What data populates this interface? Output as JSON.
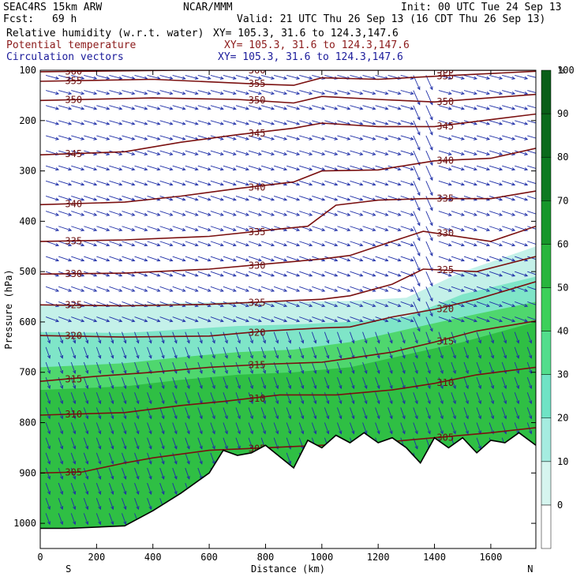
{
  "header": {
    "model": "SEAC4RS 15km ARW",
    "org": "NCAR/MMM",
    "init": "Init: 00 UTC Tue 24 Sep 13",
    "fcst_label": "Fcst:",
    "fcst_value": "69 h",
    "valid": "Valid: 21 UTC Thu 26 Sep 13 (16 CDT Thu 26 Sep 13)",
    "fields": [
      {
        "name": "Relative humidity (w.r.t. water)",
        "xy": "XY= 105.3, 31.6 to 124.3,147.6",
        "color": "#000000"
      },
      {
        "name": "Potential temperature",
        "xy": "XY= 105.3, 31.6 to 124.3,147.6",
        "color": "#8b1a1a"
      },
      {
        "name": "Circulation vectors",
        "xy": "XY= 105.3, 31.6 to 124.3,147.6",
        "color": "#1a1a9a"
      }
    ]
  },
  "colorbar": {
    "unit": "%",
    "labels": [
      "100",
      "90",
      "80",
      "70",
      "60",
      "50",
      "40",
      "30",
      "20",
      "10",
      "0"
    ],
    "colors": [
      "#ffffff",
      "#d6f5ef",
      "#a5ece0",
      "#6fe3c5",
      "#52dd8c",
      "#3cd05a",
      "#28b53d",
      "#16962a",
      "#0d7a21",
      "#0b6a1c",
      "#095e18"
    ]
  },
  "chart_data": {
    "type": "contour",
    "xlabel": "Distance (km)",
    "ylabel": "Pressure (hPa)",
    "x_ticks": [
      "0",
      "200",
      "400",
      "600",
      "800",
      "1000",
      "1200",
      "1400",
      "1600"
    ],
    "y_ticks": [
      "100",
      "200",
      "300",
      "400",
      "500",
      "600",
      "700",
      "800",
      "900",
      "1000"
    ],
    "xlim": [
      0,
      1760
    ],
    "ylim_hpa": [
      1050,
      100
    ],
    "x_end_labels": {
      "left": "S",
      "right": "N"
    },
    "theta_contours": [
      {
        "label": "360",
        "points": [
          [
            0,
            103
          ],
          [
            500,
            100
          ],
          [
            1000,
            100
          ],
          [
            1760,
            100
          ]
        ]
      },
      {
        "label": "355",
        "points": [
          [
            0,
            122
          ],
          [
            400,
            118
          ],
          [
            800,
            128
          ],
          [
            900,
            130
          ],
          [
            1000,
            115
          ],
          [
            1200,
            118
          ],
          [
            1400,
            112
          ],
          [
            1760,
            102
          ]
        ]
      },
      {
        "label": "350",
        "points": [
          [
            0,
            160
          ],
          [
            400,
            155
          ],
          [
            700,
            158
          ],
          [
            900,
            165
          ],
          [
            1000,
            152
          ],
          [
            1200,
            158
          ],
          [
            1400,
            163
          ],
          [
            1760,
            148
          ]
        ]
      },
      {
        "label": "345",
        "points": [
          [
            0,
            268
          ],
          [
            300,
            262
          ],
          [
            500,
            243
          ],
          [
            700,
            228
          ],
          [
            900,
            215
          ],
          [
            1000,
            205
          ],
          [
            1200,
            212
          ],
          [
            1400,
            212
          ],
          [
            1760,
            187
          ]
        ]
      },
      {
        "label": "340",
        "points": [
          [
            0,
            367
          ],
          [
            300,
            362
          ],
          [
            500,
            350
          ],
          [
            700,
            335
          ],
          [
            900,
            322
          ],
          [
            1000,
            300
          ],
          [
            1200,
            298
          ],
          [
            1400,
            280
          ],
          [
            1600,
            275
          ],
          [
            1760,
            255
          ]
        ]
      },
      {
        "label": "335",
        "points": [
          [
            0,
            440
          ],
          [
            300,
            437
          ],
          [
            600,
            430
          ],
          [
            800,
            418
          ],
          [
            950,
            410
          ],
          [
            1050,
            368
          ],
          [
            1200,
            358
          ],
          [
            1360,
            355
          ],
          [
            1600,
            355
          ],
          [
            1760,
            340
          ]
        ]
      },
      {
        "label": "330",
        "points": [
          [
            0,
            505
          ],
          [
            300,
            503
          ],
          [
            600,
            495
          ],
          [
            800,
            485
          ],
          [
            1000,
            475
          ],
          [
            1100,
            468
          ],
          [
            1250,
            440
          ],
          [
            1360,
            420
          ],
          [
            1600,
            440
          ],
          [
            1760,
            410
          ]
        ]
      },
      {
        "label": "325",
        "points": [
          [
            0,
            566
          ],
          [
            300,
            568
          ],
          [
            600,
            565
          ],
          [
            800,
            560
          ],
          [
            1000,
            555
          ],
          [
            1100,
            548
          ],
          [
            1250,
            525
          ],
          [
            1360,
            495
          ],
          [
            1550,
            500
          ],
          [
            1760,
            470
          ]
        ]
      },
      {
        "label": "320",
        "points": [
          [
            0,
            627
          ],
          [
            300,
            630
          ],
          [
            600,
            628
          ],
          [
            800,
            618
          ],
          [
            1000,
            612
          ],
          [
            1100,
            610
          ],
          [
            1250,
            590
          ],
          [
            1400,
            575
          ],
          [
            1550,
            555
          ],
          [
            1760,
            520
          ]
        ]
      },
      {
        "label": "315",
        "points": [
          [
            0,
            718
          ],
          [
            200,
            708
          ],
          [
            400,
            700
          ],
          [
            600,
            690
          ],
          [
            800,
            684
          ],
          [
            1000,
            680
          ],
          [
            1100,
            672
          ],
          [
            1250,
            660
          ],
          [
            1400,
            640
          ],
          [
            1550,
            618
          ],
          [
            1760,
            598
          ]
        ]
      },
      {
        "label": "310",
        "points": [
          [
            0,
            785
          ],
          [
            300,
            780
          ],
          [
            500,
            766
          ],
          [
            650,
            758
          ],
          [
            850,
            745
          ],
          [
            1050,
            745
          ],
          [
            1250,
            735
          ],
          [
            1400,
            722
          ],
          [
            1550,
            705
          ],
          [
            1760,
            690
          ]
        ]
      },
      {
        "label": "305",
        "points": [
          [
            0,
            900
          ],
          [
            150,
            898
          ],
          [
            300,
            880
          ],
          [
            400,
            870
          ],
          [
            600,
            855
          ],
          [
            800,
            850
          ],
          [
            1000,
            845
          ],
          [
            1200,
            840
          ],
          [
            1400,
            830
          ],
          [
            1600,
            820
          ],
          [
            1760,
            810
          ]
        ]
      }
    ],
    "rh_bands": [
      {
        "rh": 90,
        "points": [
          [
            0,
            735
          ],
          [
            300,
            728
          ],
          [
            500,
            715
          ],
          [
            700,
            705
          ],
          [
            900,
            700
          ],
          [
            1100,
            690
          ],
          [
            1300,
            665
          ],
          [
            1500,
            640
          ],
          [
            1760,
            600
          ]
        ]
      },
      {
        "rh": 70,
        "points": [
          [
            0,
            690
          ],
          [
            300,
            682
          ],
          [
            500,
            670
          ],
          [
            700,
            660
          ],
          [
            900,
            655
          ],
          [
            1100,
            640
          ],
          [
            1300,
            615
          ],
          [
            1500,
            590
          ],
          [
            1760,
            560
          ]
        ]
      },
      {
        "rh": 50,
        "points": [
          [
            0,
            620
          ],
          [
            300,
            622
          ],
          [
            500,
            615
          ],
          [
            700,
            608
          ],
          [
            900,
            605
          ],
          [
            1100,
            600
          ],
          [
            1300,
            590
          ],
          [
            1500,
            545
          ],
          [
            1760,
            510
          ]
        ]
      },
      {
        "rh": 30,
        "points": [
          [
            0,
            565
          ],
          [
            300,
            566
          ],
          [
            500,
            562
          ],
          [
            700,
            560
          ],
          [
            900,
            560
          ],
          [
            1100,
            558
          ],
          [
            1300,
            552
          ],
          [
            1500,
            500
          ],
          [
            1760,
            450
          ]
        ]
      }
    ],
    "terrain_hpa": [
      [
        0,
        1010
      ],
      [
        100,
        1010
      ],
      [
        300,
        1005
      ],
      [
        400,
        975
      ],
      [
        500,
        940
      ],
      [
        600,
        900
      ],
      [
        650,
        855
      ],
      [
        700,
        865
      ],
      [
        750,
        860
      ],
      [
        800,
        845
      ],
      [
        900,
        890
      ],
      [
        950,
        835
      ],
      [
        1000,
        850
      ],
      [
        1050,
        825
      ],
      [
        1100,
        840
      ],
      [
        1150,
        820
      ],
      [
        1200,
        840
      ],
      [
        1250,
        830
      ],
      [
        1300,
        850
      ],
      [
        1350,
        880
      ],
      [
        1400,
        830
      ],
      [
        1450,
        850
      ],
      [
        1500,
        830
      ],
      [
        1550,
        860
      ],
      [
        1600,
        835
      ],
      [
        1650,
        840
      ],
      [
        1700,
        820
      ],
      [
        1760,
        845
      ]
    ]
  }
}
